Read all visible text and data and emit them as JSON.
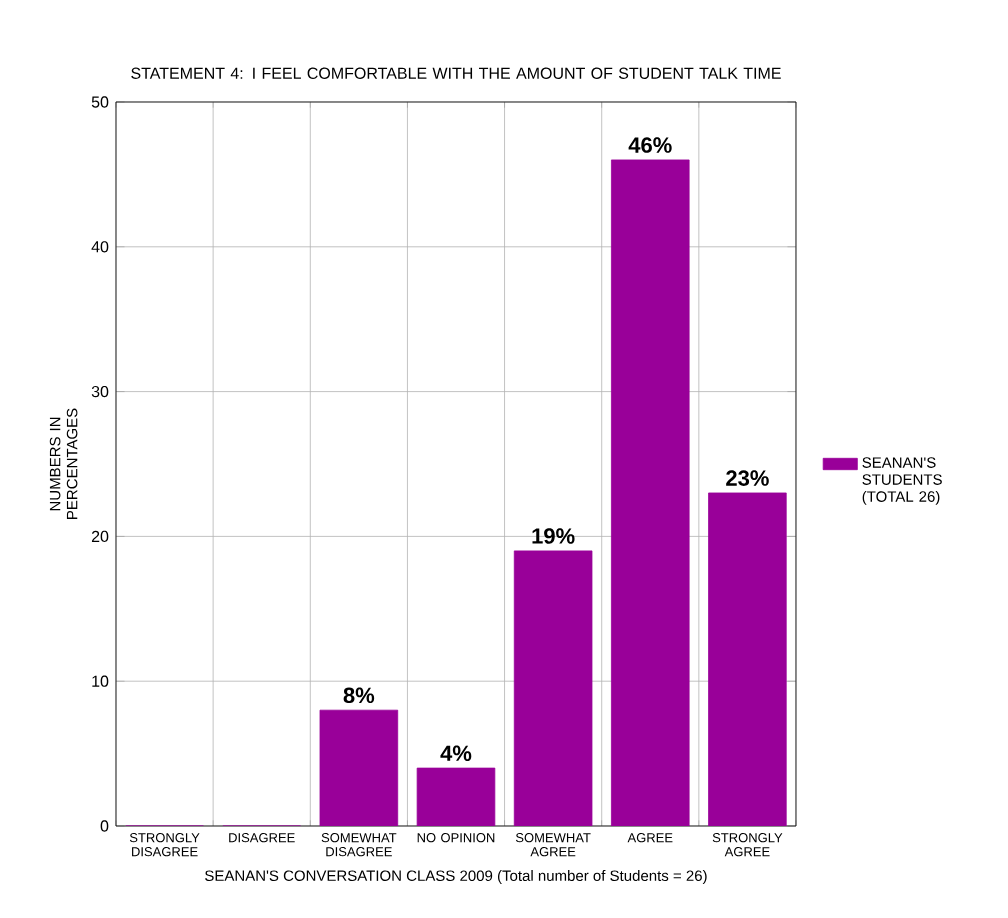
{
  "chart_data": {
    "type": "bar",
    "title": "STATEMENT 4: I FEEL COMFORTABLE WITH THE AMOUNT OF STUDENT TALK TIME",
    "xlabel": "SEANAN'S CONVERSATION CLASS 2009 (Total number of Students = 26)",
    "ylabel": "NUMBERS IN PERCENTAGES",
    "categories": [
      "STRONGLY DISAGREE",
      "DISAGREE",
      "SOMEWHAT DISAGREE",
      "NO OPINION",
      "SOMEWHAT AGREE",
      "AGREE",
      "STRONGLY AGREE"
    ],
    "series": [
      {
        "name": "SEANAN'S STUDENTS (TOTAL 26)",
        "color": "#990099",
        "values": [
          0,
          0,
          8,
          4,
          19,
          46,
          23
        ],
        "value_labels": [
          null,
          null,
          "8%",
          "4%",
          "19%",
          "46%",
          "23%"
        ]
      }
    ],
    "ylim": [
      0,
      50
    ],
    "yticks": [
      0,
      10,
      20,
      30,
      40,
      50
    ],
    "grid": true,
    "legend": "right"
  }
}
